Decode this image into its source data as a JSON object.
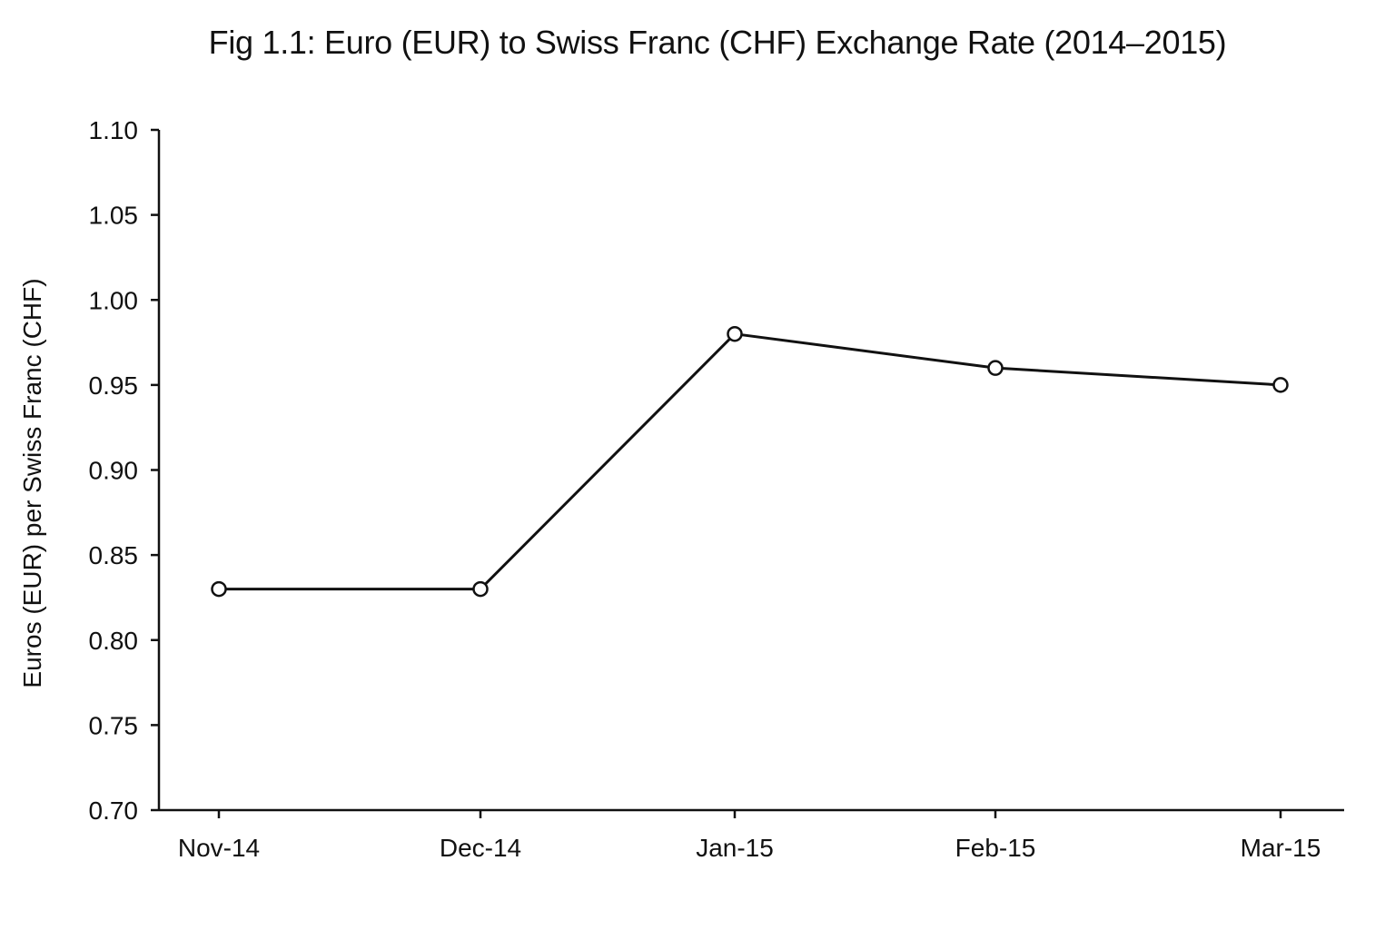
{
  "chart_data": {
    "type": "line",
    "title": "Fig 1.1: Euro (EUR) to Swiss Franc (CHF) Exchange Rate (2014–2015)",
    "xlabel": "",
    "ylabel": "Euros (EUR) per Swiss Franc (CHF)",
    "categories": [
      "Nov-14",
      "Dec-14",
      "Jan-15",
      "Feb-15",
      "Mar-15"
    ],
    "series": [
      {
        "values": [
          0.83,
          0.83,
          0.98,
          0.96,
          0.95
        ]
      }
    ],
    "ylim": [
      0.7,
      1.1
    ],
    "yticks": [
      "0.70",
      "0.75",
      "0.80",
      "0.85",
      "0.90",
      "0.95",
      "1.00",
      "1.05",
      "1.10"
    ],
    "grid": false,
    "legend": "none",
    "colors": {
      "line": "#111111",
      "marker_fill": "#ffffff",
      "axis": "#111111"
    }
  }
}
